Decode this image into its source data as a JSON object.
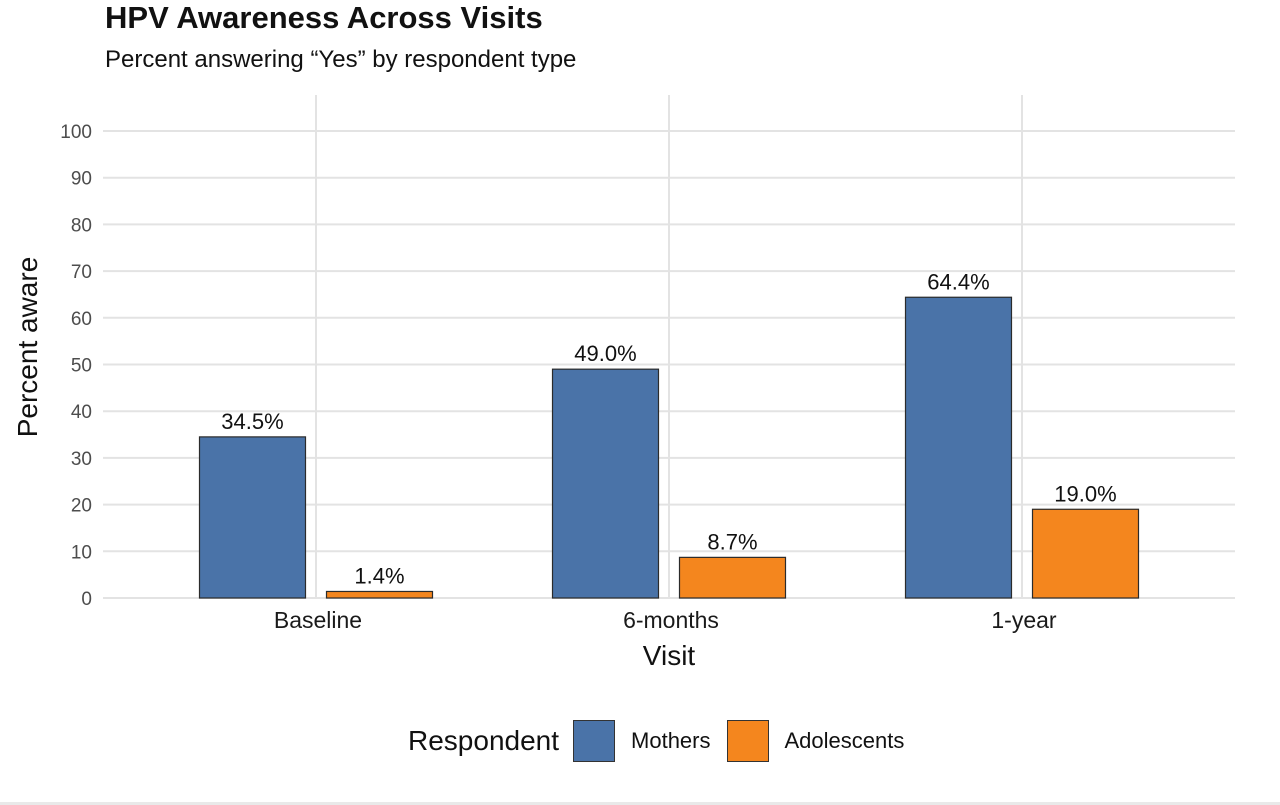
{
  "chart_data": {
    "type": "bar",
    "title": "HPV Awareness Across Visits",
    "subtitle": "Percent answering “Yes” by respondent type",
    "xlabel": "Visit",
    "ylabel": "Percent aware",
    "categories": [
      "Baseline",
      "6-months",
      "1-year"
    ],
    "series": [
      {
        "name": "Mothers",
        "values": [
          34.5,
          49.0,
          64.4
        ],
        "labels": [
          "34.5%",
          "49.0%",
          "64.4%"
        ],
        "color": "#4a73a8"
      },
      {
        "name": "Adolescents",
        "values": [
          1.4,
          8.7,
          19.0
        ],
        "labels": [
          "1.4%",
          "8.7%",
          "19.0%"
        ],
        "color": "#f4861e"
      }
    ],
    "ylim": [
      0,
      100
    ],
    "yticks": [
      0,
      10,
      20,
      30,
      40,
      50,
      60,
      70,
      80,
      90,
      100
    ],
    "grid": true,
    "legend": {
      "title": "Respondent",
      "placement": "bottom"
    }
  }
}
